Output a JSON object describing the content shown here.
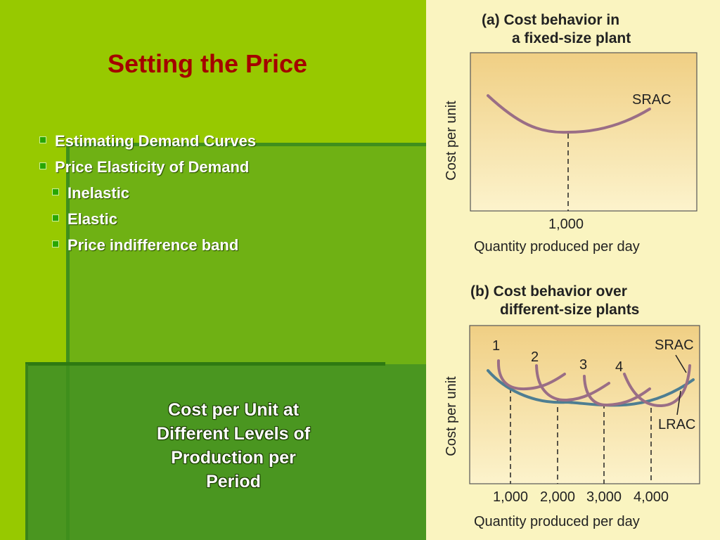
{
  "slide": {
    "title": "Setting the Price",
    "bullets": [
      {
        "level": 1,
        "text": "Estimating Demand Curves"
      },
      {
        "level": 1,
        "text": "Price Elasticity of Demand"
      },
      {
        "level": 2,
        "text": "Inelastic"
      },
      {
        "level": 2,
        "text": "Elastic"
      },
      {
        "level": 2,
        "text": "Price indifference band"
      }
    ],
    "caption_lines": [
      "Cost per  Unit at",
      "Different Levels of",
      "Production per",
      "Period"
    ]
  },
  "figure": {
    "panel_a": {
      "title_lines": [
        "(a) Cost behavior in",
        "a fixed-size plant"
      ],
      "ylabel": "Cost per unit",
      "xlabel": "Quantity produced per day",
      "tick_labels": [
        "1,000"
      ],
      "curve_labels": [
        "SRAC"
      ]
    },
    "panel_b": {
      "title_lines": [
        "(b) Cost behavior over",
        "different-size plants"
      ],
      "ylabel": "Cost per unit",
      "xlabel": "Quantity produced per day",
      "tick_labels": [
        "1,000",
        "2,000",
        "3,000",
        "4,000"
      ],
      "plant_labels": [
        "1",
        "2",
        "3",
        "4"
      ],
      "curve_labels": [
        "SRAC",
        "LRAC"
      ]
    },
    "colors": {
      "srac": "#9a6e86",
      "lrac": "#4e7e92",
      "plot_top": "#f0cf84",
      "plot_bottom": "#fcf3cc",
      "title_red": "#a40000"
    }
  }
}
